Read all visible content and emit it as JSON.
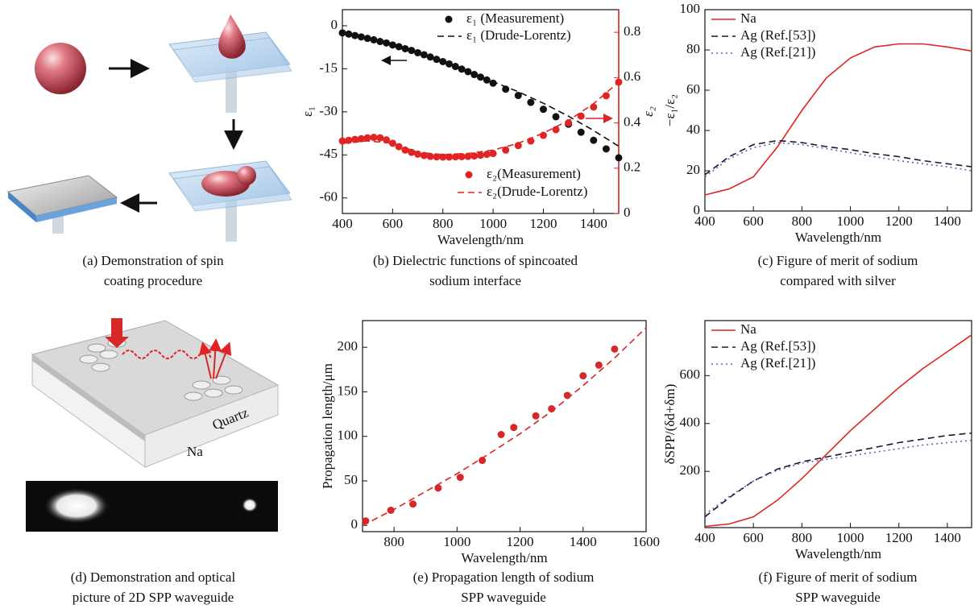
{
  "chart_data": [
    {
      "type": "line",
      "caption": [
        "(b) Dielectric functions of spincoated",
        "sodium interface"
      ],
      "xlabel": "Wavelength/nm",
      "ylabel": "ε₁",
      "y2label": "ε₂",
      "xlim": [
        400,
        1500
      ],
      "xticks": [
        400,
        600,
        800,
        1000,
        1200,
        1400
      ],
      "ylim": [
        -65.4,
        5.6
      ],
      "yticks": [
        0,
        -15,
        -30,
        -45,
        -60
      ],
      "y2lim": [
        0,
        0.9
      ],
      "y2ticks": [
        0,
        0.2,
        0.4,
        0.6,
        0.8
      ],
      "y2_color": "#e02424",
      "series": [
        {
          "name": "ε₁ (Measurement)",
          "color": "#111111",
          "style": "markers",
          "x": [
            400,
            425,
            450,
            475,
            500,
            525,
            550,
            575,
            600,
            625,
            650,
            675,
            700,
            725,
            750,
            775,
            800,
            825,
            850,
            875,
            900,
            925,
            950,
            975,
            1000,
            1050,
            1100,
            1150,
            1200,
            1250,
            1300,
            1350,
            1400,
            1450,
            1500
          ],
          "values": [
            -2.5,
            -2.9,
            -3.4,
            -3.9,
            -4.4,
            -4.9,
            -5.5,
            -6.0,
            -6.7,
            -7.3,
            -8.0,
            -8.6,
            -9.4,
            -10.1,
            -10.9,
            -11.7,
            -12.5,
            -13.3,
            -14.2,
            -15.1,
            -16.0,
            -17.0,
            -17.9,
            -18.9,
            -20.0,
            -22.1,
            -24.3,
            -26.7,
            -29.1,
            -31.7,
            -34.3,
            -37.1,
            -39.9,
            -42.9,
            -46.0
          ]
        },
        {
          "name": "ε₁ (Drude-Lorentz)",
          "color": "#111111",
          "style": "dashed",
          "x": [
            400,
            500,
            600,
            700,
            800,
            900,
            1000,
            1100,
            1200,
            1300,
            1400,
            1500
          ],
          "values": [
            -2.5,
            -4.4,
            -6.7,
            -9.4,
            -12.5,
            -16,
            -19.5,
            -23,
            -27,
            -31.5,
            -36.5,
            -42
          ]
        },
        {
          "name": "ε₂(Measurement)",
          "color": "#e02424",
          "style": "markers",
          "axis": "y2",
          "x": [
            400,
            425,
            450,
            475,
            500,
            525,
            550,
            575,
            600,
            625,
            650,
            675,
            700,
            725,
            750,
            775,
            800,
            825,
            850,
            875,
            900,
            925,
            950,
            975,
            1000,
            1050,
            1100,
            1150,
            1200,
            1250,
            1300,
            1350,
            1400,
            1450,
            1500
          ],
          "values": [
            0.32,
            0.323,
            0.327,
            0.33,
            0.334,
            0.336,
            0.334,
            0.325,
            0.31,
            0.295,
            0.28,
            0.27,
            0.262,
            0.256,
            0.252,
            0.25,
            0.249,
            0.249,
            0.25,
            0.251,
            0.252,
            0.254,
            0.257,
            0.261,
            0.265,
            0.28,
            0.3,
            0.32,
            0.345,
            0.37,
            0.4,
            0.43,
            0.47,
            0.52,
            0.58
          ]
        },
        {
          "name": "ε₂(Drude-Lorentz)",
          "color": "#e02424",
          "style": "dashed",
          "axis": "y2",
          "x": [
            400,
            500,
            600,
            700,
            800,
            900,
            1000,
            1100,
            1200,
            1300,
            1400,
            1500
          ],
          "values": [
            0.31,
            0.32,
            0.31,
            0.27,
            0.26,
            0.265,
            0.28,
            0.31,
            0.355,
            0.41,
            0.485,
            0.58
          ]
        }
      ]
    },
    {
      "type": "line",
      "caption": [
        "(c) Figure of merit of sodium",
        "compared with silver"
      ],
      "xlabel": "Wavelength/nm",
      "ylabel": "−ε₁/ε₂",
      "legend": "upper-left",
      "xlim": [
        400,
        1500
      ],
      "xticks": [
        400,
        600,
        800,
        1000,
        1200,
        1400
      ],
      "ylim": [
        0,
        100
      ],
      "yticks": [
        0,
        20,
        40,
        60,
        80,
        100
      ],
      "series": [
        {
          "name": "Na",
          "color": "#e02424",
          "style": "solid",
          "x": [
            400,
            500,
            600,
            700,
            800,
            900,
            1000,
            1100,
            1200,
            1300,
            1400,
            1500
          ],
          "values": [
            8,
            11,
            17,
            32,
            50,
            66,
            76,
            81.5,
            83,
            83,
            81.5,
            79.5
          ]
        },
        {
          "name": "Ag (Ref.[53])",
          "color": "#1a1a2e",
          "style": "dashed",
          "x": [
            400,
            500,
            600,
            700,
            800,
            900,
            1000,
            1100,
            1200,
            1300,
            1400,
            1500
          ],
          "values": [
            18,
            27,
            33,
            35,
            34,
            32,
            30.5,
            28.5,
            27,
            25,
            23.5,
            22
          ]
        },
        {
          "name": "Ag (Ref.[21])",
          "color": "#4a6fb5",
          "style": "dotted",
          "x": [
            400,
            500,
            600,
            700,
            800,
            900,
            1000,
            1100,
            1200,
            1300,
            1400,
            1500
          ],
          "values": [
            17,
            26,
            31.5,
            34,
            33,
            31,
            29,
            27,
            25,
            23.5,
            22,
            20
          ]
        }
      ]
    },
    {
      "type": "scatter",
      "caption": [
        "(e) Propagation length of sodium",
        "SPP waveguide"
      ],
      "xlabel": "Wavelength/nm",
      "ylabel": "Propagation length/μm",
      "xlim": [
        700,
        1600
      ],
      "xticks": [
        800,
        1000,
        1200,
        1400,
        1600
      ],
      "ylim": [
        -7,
        230
      ],
      "yticks": [
        0,
        50,
        100,
        150,
        200
      ],
      "series": [
        {
          "color": "#d62828",
          "style": "markers",
          "x": [
            710,
            790,
            860,
            940,
            1010,
            1080,
            1140,
            1180,
            1250,
            1300,
            1350,
            1400,
            1450,
            1500
          ],
          "values": [
            5,
            17,
            24,
            42,
            54,
            73,
            102,
            110,
            123,
            131,
            146,
            168,
            180,
            198
          ]
        },
        {
          "color": "#d62828",
          "style": "dashed",
          "x": [
            700,
            800,
            900,
            1000,
            1100,
            1200,
            1300,
            1400,
            1500,
            1600
          ],
          "values": [
            0,
            18,
            38,
            58,
            80,
            103,
            128,
            157,
            188,
            222
          ]
        }
      ]
    },
    {
      "type": "line",
      "caption": [
        "(f) Figure of merit of sodium",
        "SPP waveguide"
      ],
      "xlabel": "Wavelength/nm",
      "ylabel": "δSPP/(δd+δm)",
      "legend": "upper-left",
      "xlim": [
        400,
        1500
      ],
      "xticks": [
        400,
        600,
        800,
        1000,
        1200,
        1400
      ],
      "ylim": [
        -35,
        830
      ],
      "yticks": [
        200,
        400,
        600
      ],
      "series": [
        {
          "name": "Na",
          "color": "#e02424",
          "style": "solid",
          "x": [
            400,
            500,
            600,
            700,
            800,
            900,
            1000,
            1100,
            1200,
            1300,
            1400,
            1500
          ],
          "values": [
            -30,
            -20,
            10,
            80,
            170,
            270,
            370,
            460,
            550,
            630,
            700,
            770
          ]
        },
        {
          "name": "Ag (Ref.[53])",
          "color": "#1a1a2e",
          "style": "dashed",
          "x": [
            400,
            500,
            600,
            700,
            800,
            900,
            1000,
            1100,
            1200,
            1300,
            1400,
            1500
          ],
          "values": [
            10,
            90,
            160,
            210,
            240,
            260,
            280,
            300,
            320,
            335,
            350,
            360
          ]
        },
        {
          "name": "Ag (Ref.[21])",
          "color": "#4a6fb5",
          "style": "dotted",
          "x": [
            400,
            500,
            600,
            700,
            800,
            900,
            1000,
            1100,
            1200,
            1300,
            1400,
            1500
          ],
          "values": [
            20,
            95,
            160,
            205,
            235,
            250,
            265,
            280,
            295,
            310,
            320,
            330
          ]
        }
      ]
    }
  ],
  "illustrations": [
    {
      "caption": [
        "(a) Demonstration of spin",
        "coating procedure"
      ]
    },
    {
      "caption": [
        "(d) Demonstration and optical",
        "picture of 2D SPP waveguide"
      ],
      "labels": [
        "Quartz",
        "Na"
      ]
    }
  ]
}
